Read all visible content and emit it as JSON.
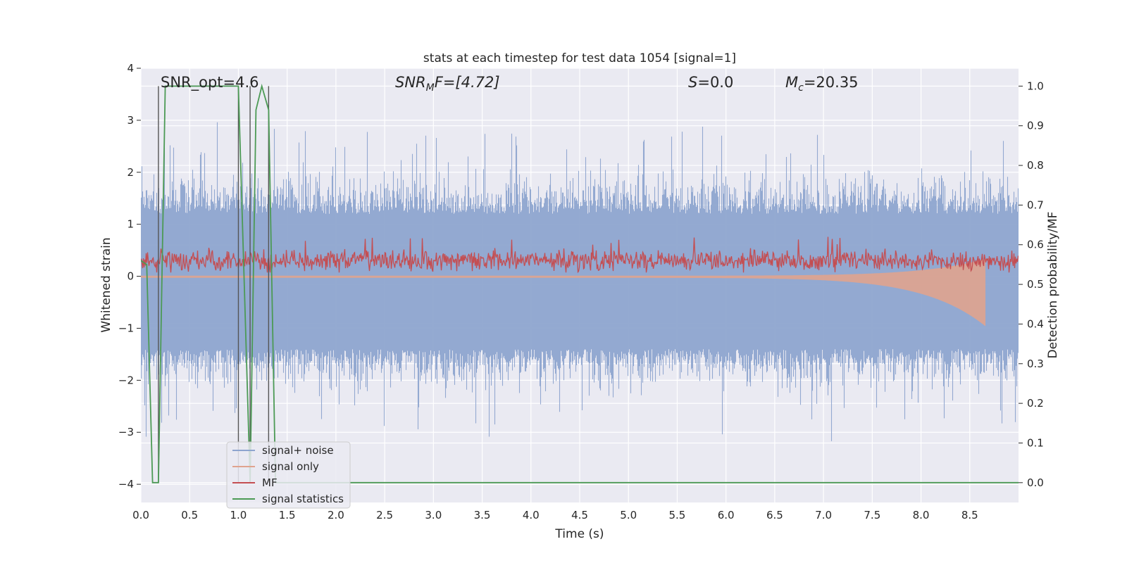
{
  "chart_data": {
    "type": "line",
    "title": "stats at each timestep for test data 1054 [signal=1]",
    "xlabel": "Time (s)",
    "ylabel": "Whitened strain",
    "ylabel_right": "Detection probability/MF",
    "xlim": [
      0.0,
      9.0
    ],
    "ylim": [
      -4.35,
      4.0
    ],
    "ylim_right": [
      -0.05,
      1.045
    ],
    "x_ticks": [
      "0.0",
      "0.5",
      "1.0",
      "1.5",
      "2.0",
      "2.5",
      "3.0",
      "3.5",
      "4.0",
      "4.5",
      "5.0",
      "5.5",
      "6.0",
      "6.5",
      "7.0",
      "7.5",
      "8.0",
      "8.5"
    ],
    "y_ticks": [
      "4",
      "3",
      "2",
      "1",
      "0",
      "−1",
      "−2",
      "−3",
      "−4"
    ],
    "y_right_ticks": [
      "1.0",
      "0.9",
      "0.8",
      "0.7",
      "0.6",
      "0.5",
      "0.4",
      "0.3",
      "0.2",
      "0.1",
      "0.0"
    ],
    "grid": true,
    "legend_position": "lower-left",
    "annotations": {
      "snr_opt": "SNR_opt=4.6",
      "snr_mf_main": "SNR",
      "snr_mf_sub": "M",
      "snr_mf_tail": "F=[4.72]",
      "s_main": "S",
      "s_tail": "=0.0",
      "mc_main": "M",
      "mc_sub": "c",
      "mc_tail": "=20.35"
    },
    "series": [
      {
        "name": "signal+ noise",
        "axis": "left",
        "color": "#8ea5cf",
        "kind": "noise",
        "envelope": [
          -4.0,
          3.65
        ]
      },
      {
        "name": "signal only",
        "axis": "left",
        "color": "#e0a38e",
        "kind": "chirp",
        "x_end": 8.65,
        "min_at_end": -0.95
      },
      {
        "name": "MF",
        "axis": "right",
        "color": "#c44e52",
        "kind": "noise",
        "center": 0.56,
        "range": [
          0.53,
          0.62
        ]
      },
      {
        "name": "signal statistics",
        "axis": "right",
        "color": "#4c9a55",
        "x": [
          0.0,
          0.06,
          0.12,
          0.18,
          0.25,
          1.0,
          1.06,
          1.12,
          1.18,
          1.24,
          1.31,
          1.38,
          1.45,
          9.0
        ],
        "y": [
          0.56,
          0.55,
          0.0,
          0.0,
          1.0,
          1.0,
          0.5,
          0.0,
          0.94,
          1.0,
          0.94,
          0.0,
          0.0,
          0.0
        ]
      }
    ],
    "vlines_x": [
      0.18,
      1.0,
      1.12,
      1.31
    ],
    "vline_color": "#555555"
  }
}
